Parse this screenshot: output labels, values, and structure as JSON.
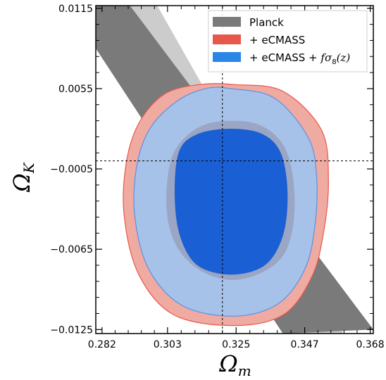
{
  "chart_data": {
    "type": "contour",
    "xlabel": "Ω",
    "xlabel_sub": "m",
    "ylabel": "Ω",
    "ylabel_sub": "K",
    "xlim": [
      0.28,
      0.369
    ],
    "ylim": [
      -0.0128,
      0.0117
    ],
    "xticks": [
      {
        "value": 0.282,
        "label": "0.282"
      },
      {
        "value": 0.303,
        "label": "0.303"
      },
      {
        "value": 0.325,
        "label": "0.325"
      },
      {
        "value": 0.347,
        "label": "0.347"
      },
      {
        "value": 0.368,
        "label": "0.368"
      }
    ],
    "yticks": [
      {
        "value": 0.0115,
        "label": "0.0115"
      },
      {
        "value": 0.0055,
        "label": "0.0055"
      },
      {
        "value": -0.0005,
        "label": "−0.0005"
      },
      {
        "value": -0.0065,
        "label": "−0.0065"
      },
      {
        "value": -0.0125,
        "label": "−0.0125"
      }
    ],
    "reference_lines": {
      "x": 0.3206,
      "y": 0.0001
    },
    "legend": {
      "position": "top-right",
      "entries": [
        {
          "label": "Planck",
          "color": "#7a7a7a"
        },
        {
          "label": "+ eCMASS",
          "color": "#e8584a"
        },
        {
          "label": "+ eCMASS + ",
          "label_math": "fσ",
          "label_math_sub": "8",
          "label_math_tail": "(z)",
          "color": "#2a86e6"
        }
      ]
    },
    "series": [
      {
        "name": "Planck",
        "colors": {
          "outer": "#cccccc",
          "inner": "#7a7a7a"
        },
        "outer_band": [
          [
            0.28,
            0.0198
          ],
          [
            0.363,
            -0.0143
          ],
          [
            0.345,
            -0.0143
          ],
          [
            0.28,
            0.0088
          ]
        ],
        "inner_band": [
          [
            0.28,
            0.0151
          ],
          [
            0.369,
            -0.0125
          ],
          [
            0.34,
            -0.0128
          ],
          [
            0.28,
            0.0085
          ]
        ]
      },
      {
        "name": "+ eCMASS",
        "colors": {
          "outer": "#efaaa2",
          "outer_edge": "#e8584a",
          "inner": "#9aa6c4"
        },
        "outer_contour": [
          [
            0.3246,
            0.0058
          ],
          [
            0.34,
            0.0053
          ],
          [
            0.3524,
            0.0024
          ],
          [
            0.3546,
            -0.0014
          ],
          [
            0.353,
            -0.0053
          ],
          [
            0.3492,
            -0.0086
          ],
          [
            0.3401,
            -0.0114
          ],
          [
            0.3241,
            -0.0122
          ],
          [
            0.305,
            -0.0114
          ],
          [
            0.2938,
            -0.0084
          ],
          [
            0.2891,
            -0.004
          ],
          [
            0.2898,
            0.0
          ],
          [
            0.294,
            0.003
          ],
          [
            0.3021,
            0.0051
          ],
          [
            0.3132,
            0.0058
          ]
        ],
        "inner_contour": [
          [
            0.3239,
            0.0031
          ],
          [
            0.3342,
            0.0026
          ],
          [
            0.3414,
            0.0007
          ],
          [
            0.3438,
            -0.003
          ],
          [
            0.3416,
            -0.0063
          ],
          [
            0.3352,
            -0.008
          ],
          [
            0.324,
            -0.0088
          ],
          [
            0.3129,
            -0.008
          ],
          [
            0.3053,
            -0.006
          ],
          [
            0.3026,
            -0.003
          ],
          [
            0.3048,
            0.0006
          ],
          [
            0.3129,
            0.0026
          ]
        ]
      },
      {
        "name": "+ eCMASS + fσ8(z)",
        "colors": {
          "outer": "#a7c2e9",
          "outer_edge": "#5a92e2",
          "inner": "#1a5fd4"
        },
        "outer_contour": [
          [
            0.3232,
            0.0055
          ],
          [
            0.3372,
            0.0048
          ],
          [
            0.348,
            0.0019
          ],
          [
            0.3508,
            -0.001
          ],
          [
            0.3503,
            -0.0047
          ],
          [
            0.347,
            -0.008
          ],
          [
            0.3383,
            -0.0106
          ],
          [
            0.3242,
            -0.0115
          ],
          [
            0.3077,
            -0.0107
          ],
          [
            0.297,
            -0.008
          ],
          [
            0.2925,
            -0.004
          ],
          [
            0.2932,
            -0.0002
          ],
          [
            0.2976,
            0.0026
          ],
          [
            0.3063,
            0.0046
          ],
          [
            0.3152,
            0.0055
          ]
        ],
        "inner_contour": [
          [
            0.3232,
            0.0025
          ],
          [
            0.3335,
            0.0021
          ],
          [
            0.3395,
            0.0006
          ],
          [
            0.3415,
            -0.0024
          ],
          [
            0.34,
            -0.0055
          ],
          [
            0.3342,
            -0.0077
          ],
          [
            0.3234,
            -0.0084
          ],
          [
            0.3126,
            -0.0077
          ],
          [
            0.307,
            -0.0055
          ],
          [
            0.3053,
            -0.0024
          ],
          [
            0.3067,
            0.0008
          ],
          [
            0.3126,
            0.0021
          ]
        ]
      }
    ]
  }
}
